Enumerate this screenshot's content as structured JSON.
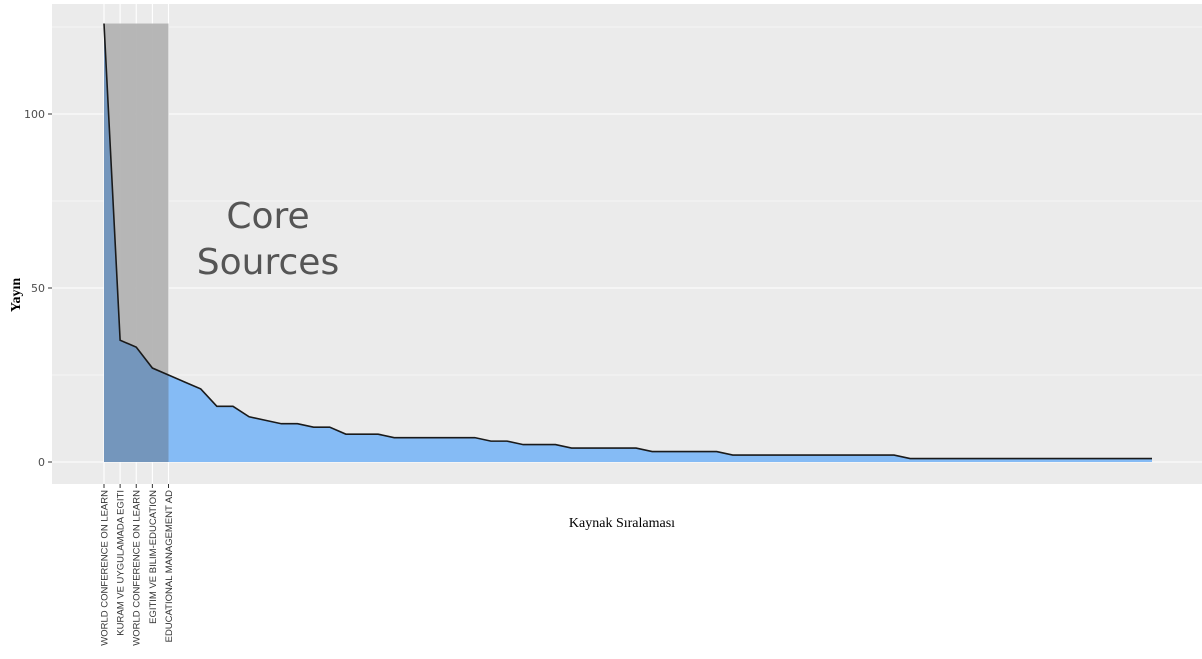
{
  "chart_data": {
    "type": "area",
    "title": "",
    "xlabel": "Kaynak Sıralaması",
    "ylabel": "Yayın",
    "annotation": "Core Sources",
    "ylim": [
      0,
      126
    ],
    "yticks": [
      0,
      50,
      100
    ],
    "grid": true,
    "colors": {
      "panel": "#ebebeb",
      "grid": "#ffffff",
      "area": "#85bbf5",
      "core_area": "#7496bc",
      "core_rect": "#b3b3b3",
      "line": "#1a1a1a"
    },
    "core_sources_count": 5,
    "x": [
      1,
      2,
      3,
      4,
      5,
      6,
      7,
      8,
      9,
      10,
      11,
      12,
      13,
      14,
      15,
      16,
      17,
      18,
      19,
      20,
      21,
      22,
      23,
      24,
      25,
      26,
      27,
      28,
      29,
      30,
      31,
      32,
      33,
      34,
      35,
      36,
      37,
      38,
      39,
      40,
      41,
      42,
      43,
      44,
      45,
      46,
      47,
      48,
      49,
      50,
      51,
      52,
      53,
      54,
      55,
      56,
      57,
      58,
      59,
      60,
      61,
      62,
      63,
      64,
      65,
      66
    ],
    "values": [
      126,
      35,
      33,
      27,
      25,
      23,
      21,
      16,
      16,
      13,
      12,
      11,
      11,
      10,
      10,
      8,
      8,
      8,
      7,
      7,
      7,
      7,
      7,
      7,
      6,
      6,
      5,
      5,
      5,
      4,
      4,
      4,
      4,
      4,
      3,
      3,
      3,
      3,
      3,
      2,
      2,
      2,
      2,
      2,
      2,
      2,
      2,
      2,
      2,
      2,
      1,
      1,
      1,
      1,
      1,
      1,
      1,
      1,
      1,
      1,
      1,
      1,
      1,
      1,
      1,
      1
    ],
    "labeled_categories": [
      {
        "rank": 1,
        "label": "WORLD CONFERENCE ON LEARN"
      },
      {
        "rank": 2,
        "label": "KURAM VE UYGULAMADA EGITI"
      },
      {
        "rank": 3,
        "label": "WORLD CONFERENCE ON LEARN"
      },
      {
        "rank": 4,
        "label": "EGITIM VE BILIM-EDUCATION"
      },
      {
        "rank": 5,
        "label": "EDUCATIONAL MANAGEMENT AD"
      }
    ]
  }
}
